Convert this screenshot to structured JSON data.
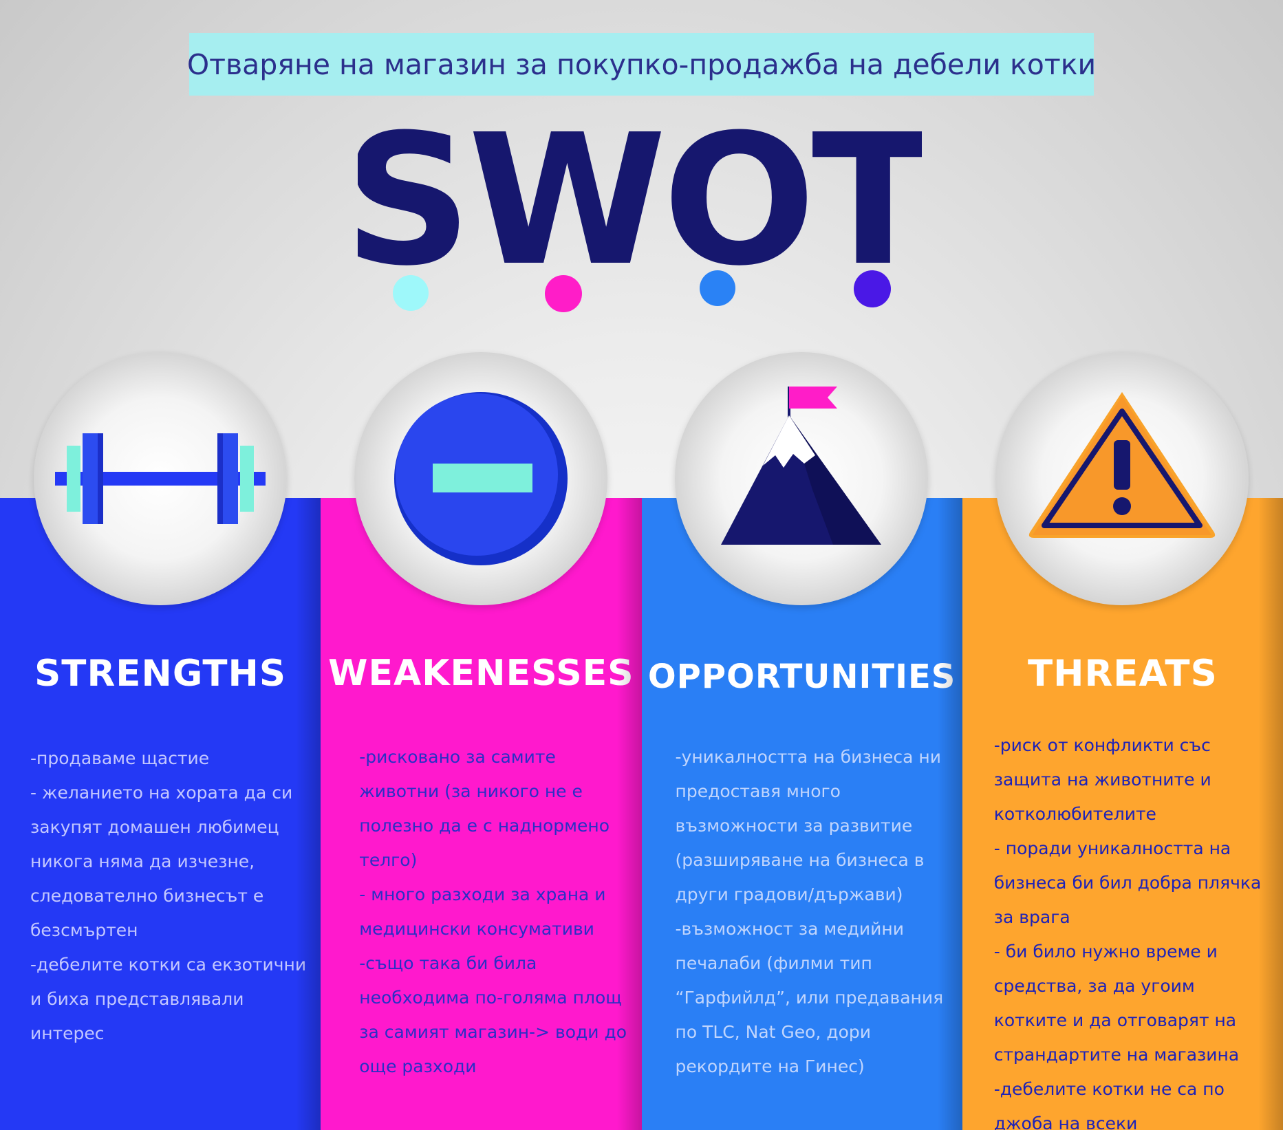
{
  "banner": {
    "title": "Отваряне на магазин за покупко-продажба на дебели котки"
  },
  "logo": {
    "text": "SWOT",
    "dot_colors": [
      "#9ef8fa",
      "#ff1dc8",
      "#2a82f5",
      "#4a18e6"
    ]
  },
  "colors": {
    "strengths": "#2439f5",
    "weaknesses": "#ff19cd",
    "opportunities": "#2a7ff5",
    "threats": "#fea52e",
    "title_navy": "#16176e"
  },
  "sections": [
    {
      "title": "STRENGTHS",
      "icon": "dumbbell-icon",
      "lines": [
        "-продаваме щастие",
        "- желанието на хората да си",
        "закупят домашен любимец",
        "никога няма да изчезне,",
        "следователно бизнесът е",
        "безсмъртен",
        "-дебелите котки са екзотични",
        "и биха представлявали",
        "интерес"
      ]
    },
    {
      "title": "WEAKENESSES",
      "icon": "minus-circle-icon",
      "lines": [
        "-рисковано за самите",
        "животни (за никого не е",
        "полезно да е с наднормено",
        "телго)",
        "- много разходи за храна и",
        "медицински консумативи",
        "-също така би била",
        "необходима по-голяма площ",
        "за самият магазин-> води до",
        "още разходи"
      ]
    },
    {
      "title": "OPPORTUNITIES",
      "icon": "mountain-flag-icon",
      "lines": [
        "-уникалността на бизнеса  ни",
        "предоставя много",
        "възможности за развитие",
        "(разширяване на бизнеса в",
        "други градови/държави)",
        "-възможност за медийни",
        "печалаби (филми тип",
        "“Гарфийлд”, или предавания",
        "по TLC, Nat Geo, дори",
        "рекордите на Гинес)"
      ]
    },
    {
      "title": "THREATS",
      "icon": "warning-triangle-icon",
      "lines": [
        "-риск от конфликти със",
        "защита на животните и",
        "котколюбителите",
        "- поради уникалността на",
        "бизнеса би бил добра плячка",
        "за врага",
        "- би било нужно време и",
        "средства, за да угоим",
        "котките и да отговарят на",
        "страндартите на магазина",
        "-дебелите котки не са по",
        "джоба на всеки"
      ]
    }
  ]
}
